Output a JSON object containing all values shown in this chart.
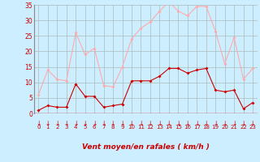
{
  "x": [
    0,
    1,
    2,
    3,
    4,
    5,
    6,
    7,
    8,
    9,
    10,
    11,
    12,
    13,
    14,
    15,
    16,
    17,
    18,
    19,
    20,
    21,
    22,
    23
  ],
  "wind_avg": [
    1,
    2.5,
    2,
    2,
    9.5,
    5.5,
    5.5,
    2,
    2.5,
    3,
    10.5,
    10.5,
    10.5,
    12,
    14.5,
    14.5,
    13,
    14,
    14.5,
    7.5,
    7,
    7.5,
    1.5,
    3.5
  ],
  "wind_gust": [
    6,
    14,
    11,
    10.5,
    26,
    19,
    21,
    9,
    8.5,
    15,
    24,
    27.5,
    29.5,
    33,
    36,
    33,
    31.5,
    34.5,
    34.5,
    26.5,
    16,
    24.5,
    11,
    14.5
  ],
  "avg_color": "#cc0000",
  "gust_color": "#ffaaaa",
  "bg_color": "#cceeff",
  "grid_color": "#aabbbb",
  "xlabel": "Vent moyen/en rafales ( km/h )",
  "xlabel_color": "#cc0000",
  "tick_color": "#cc0000",
  "ylim": [
    0,
    35
  ],
  "yticks": [
    0,
    5,
    10,
    15,
    20,
    25,
    30,
    35
  ],
  "xlim": [
    -0.5,
    23.5
  ]
}
